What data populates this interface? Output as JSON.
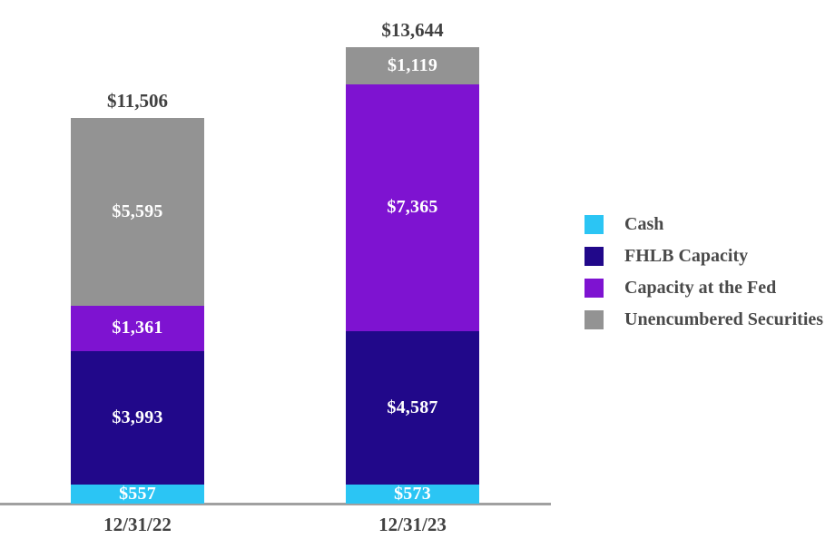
{
  "chart_data": {
    "type": "bar",
    "stacked": true,
    "title": "",
    "xlabel": "",
    "ylabel": "",
    "grid": false,
    "ylim": [
      0,
      13644
    ],
    "categories": [
      "12/31/22",
      "12/31/23"
    ],
    "series": [
      {
        "name": "Cash",
        "color": "#2BC5F4",
        "values": [
          557,
          573
        ],
        "value_labels": [
          "$557",
          "$573"
        ]
      },
      {
        "name": "FHLB Capacity",
        "color": "#21088A",
        "values": [
          3993,
          4587
        ],
        "value_labels": [
          "$3,993",
          "$4,587"
        ]
      },
      {
        "name": "Capacity at the Fed",
        "color": "#7E13D1",
        "values": [
          1361,
          7365
        ],
        "value_labels": [
          "$1,361",
          "$7,365"
        ]
      },
      {
        "name": "Unencumbered Securities",
        "color": "#939393",
        "values": [
          5595,
          1119
        ],
        "value_labels": [
          "$5,595",
          "$1,119"
        ]
      }
    ],
    "totals": [
      11506,
      13644
    ],
    "total_labels": [
      "$11,506",
      "$13,644"
    ],
    "legend": {
      "position": "right",
      "entries": [
        "Cash",
        "FHLB Capacity",
        "Capacity at the Fed",
        "Unencumbered Securities"
      ]
    },
    "colors": {
      "axis_line": "#A0A0A0",
      "label_text": "#414141",
      "legend_text": "#4A4A4A",
      "segment_value_text": "#FFFFFF"
    }
  }
}
